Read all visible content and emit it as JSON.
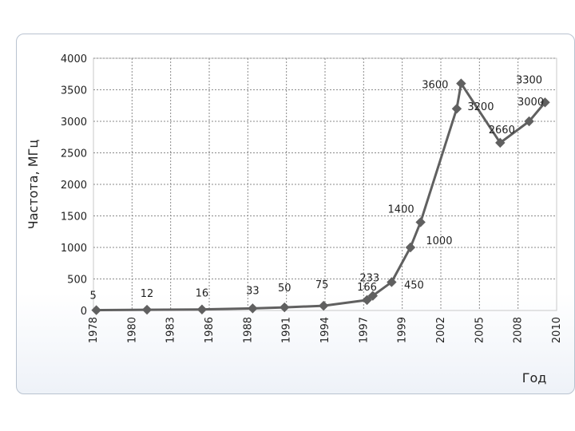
{
  "chart_data": {
    "type": "line",
    "title": "",
    "xlabel": "Год",
    "ylabel": "Частота, МГц",
    "xlim": [
      1978,
      2010
    ],
    "ylim": [
      0,
      4000
    ],
    "y_ticks": [
      0,
      500,
      1000,
      1500,
      2000,
      2500,
      3000,
      3500,
      4000
    ],
    "x_tick_labels": [
      "1978",
      "1980",
      "1983",
      "1986",
      "1988",
      "1991",
      "1994",
      "1997",
      "1999",
      "2002",
      "2005",
      "2008",
      "2010"
    ],
    "grid": true,
    "legend": "none",
    "line_color": "#606060",
    "series": [
      {
        "points": [
          {
            "x": 1978.2,
            "y": 5,
            "label": "5"
          },
          {
            "x": 1981.7,
            "y": 12,
            "label": "12"
          },
          {
            "x": 1985.5,
            "y": 16,
            "label": "16"
          },
          {
            "x": 1989.0,
            "y": 33,
            "label": "33"
          },
          {
            "x": 1991.2,
            "y": 50,
            "label": "50"
          },
          {
            "x": 1993.9,
            "y": 75,
            "label": "75"
          },
          {
            "x": 1996.9,
            "y": 166,
            "label": "166"
          },
          {
            "x": 1997.3,
            "y": 233,
            "label": "233"
          },
          {
            "x": 1998.6,
            "y": 450,
            "label": "450"
          },
          {
            "x": 1999.9,
            "y": 1000,
            "label": "1000"
          },
          {
            "x": 2000.6,
            "y": 1400,
            "label": "1400"
          },
          {
            "x": 2003.1,
            "y": 3200,
            "label": "3200"
          },
          {
            "x": 2003.4,
            "y": 3600,
            "label": "3600"
          },
          {
            "x": 2006.1,
            "y": 2660,
            "label": "2660"
          },
          {
            "x": 2008.1,
            "y": 3000,
            "label": "3000"
          },
          {
            "x": 2009.2,
            "y": 3300,
            "label": "3300"
          }
        ]
      }
    ]
  }
}
